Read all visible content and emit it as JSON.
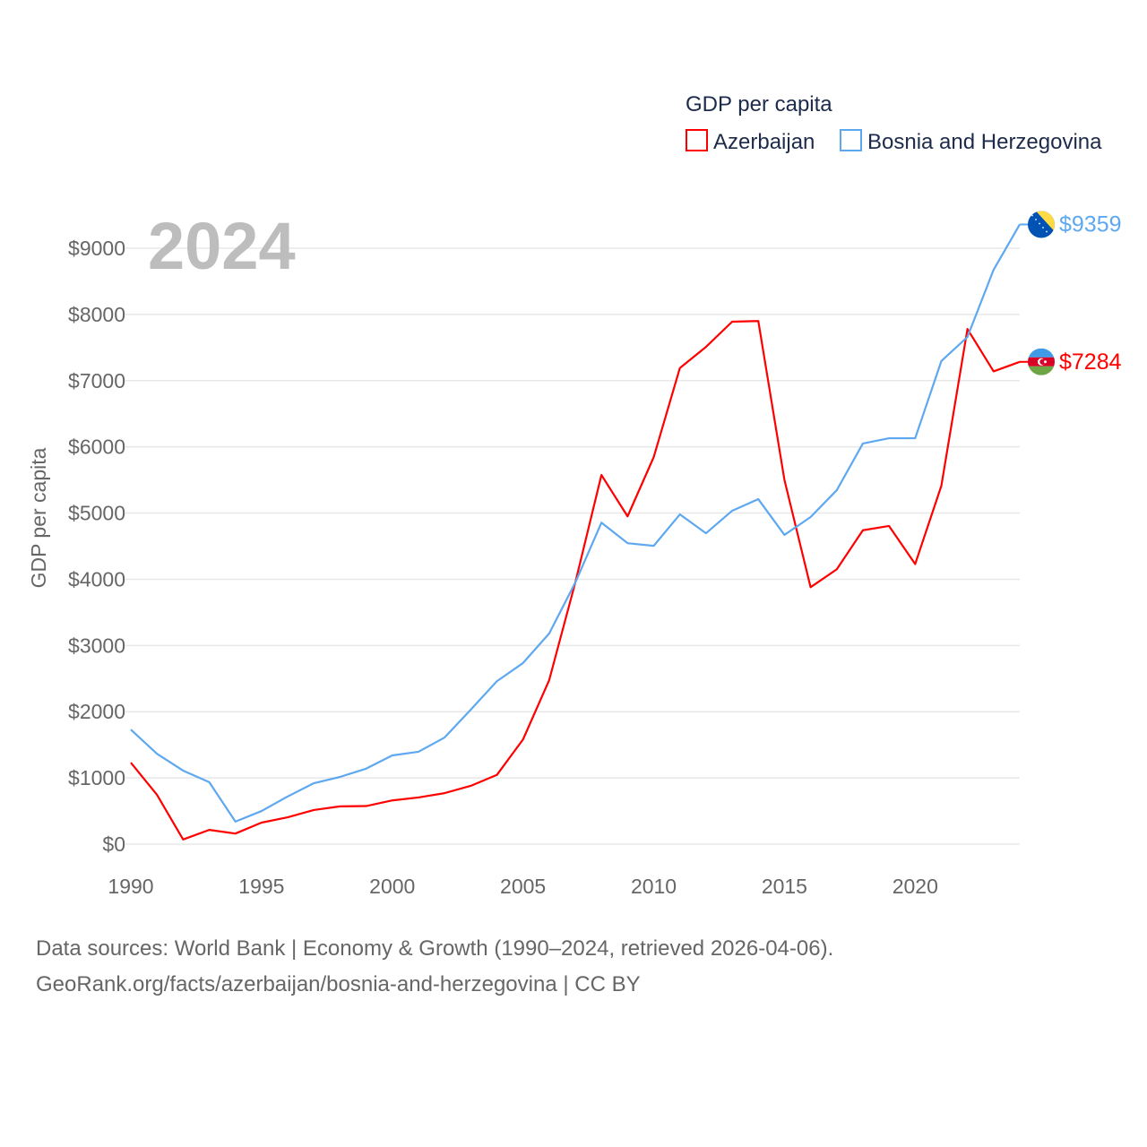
{
  "chart_data": {
    "type": "line",
    "title": "",
    "xlabel": "",
    "ylabel": "GDP per capita",
    "year_label": "2024",
    "legend_title": "GDP per capita",
    "legend_position": "top-right",
    "xlim": [
      1990,
      2024
    ],
    "ylim": [
      0,
      9000
    ],
    "x_ticks": [
      1990,
      1995,
      2000,
      2005,
      2010,
      2015,
      2020
    ],
    "y_ticks": [
      0,
      1000,
      2000,
      3000,
      4000,
      5000,
      6000,
      7000,
      8000,
      9000
    ],
    "y_tick_labels": [
      "$0",
      "$1000",
      "$2000",
      "$3000",
      "$4000",
      "$5000",
      "$6000",
      "$7000",
      "$8000",
      "$9000"
    ],
    "grid": true,
    "x": [
      1990,
      1991,
      1992,
      1993,
      1994,
      1995,
      1996,
      1997,
      1998,
      1999,
      2000,
      2001,
      2002,
      2003,
      2004,
      2005,
      2006,
      2007,
      2008,
      2009,
      2010,
      2011,
      2012,
      2013,
      2014,
      2015,
      2016,
      2017,
      2018,
      2019,
      2020,
      2021,
      2022,
      2023,
      2024
    ],
    "series": [
      {
        "name": "Azerbaijan",
        "color": "#ff0000",
        "end_label": "$7284",
        "flag": "azerbaijan-flag",
        "values": [
          1230,
          745,
          70,
          215,
          160,
          325,
          405,
          515,
          570,
          575,
          660,
          705,
          770,
          880,
          1045,
          1580,
          2475,
          3950,
          5575,
          4950,
          5845,
          7190,
          7510,
          7890,
          7900,
          5500,
          3880,
          4150,
          4740,
          4805,
          4230,
          5410,
          7780,
          7140,
          7284
        ]
      },
      {
        "name": "Bosnia and Herzegovina",
        "color": "#5ea8f0",
        "end_label": "$9359",
        "flag": "bosnia-flag",
        "values": [
          1730,
          1365,
          1110,
          935,
          340,
          500,
          720,
          920,
          1015,
          1140,
          1340,
          1395,
          1610,
          2030,
          2460,
          2735,
          3180,
          3950,
          4855,
          4545,
          4505,
          4980,
          4695,
          5035,
          5210,
          4670,
          4940,
          5345,
          6050,
          6130,
          6130,
          7295,
          7660,
          8675,
          9359
        ]
      }
    ]
  },
  "footer": {
    "line1": "Data sources: World Bank | Economy & Growth (1990–2024, retrieved 2026-04-06).",
    "line2": "GeoRank.org/facts/azerbaijan/bosnia-and-herzegovina | CC BY"
  }
}
